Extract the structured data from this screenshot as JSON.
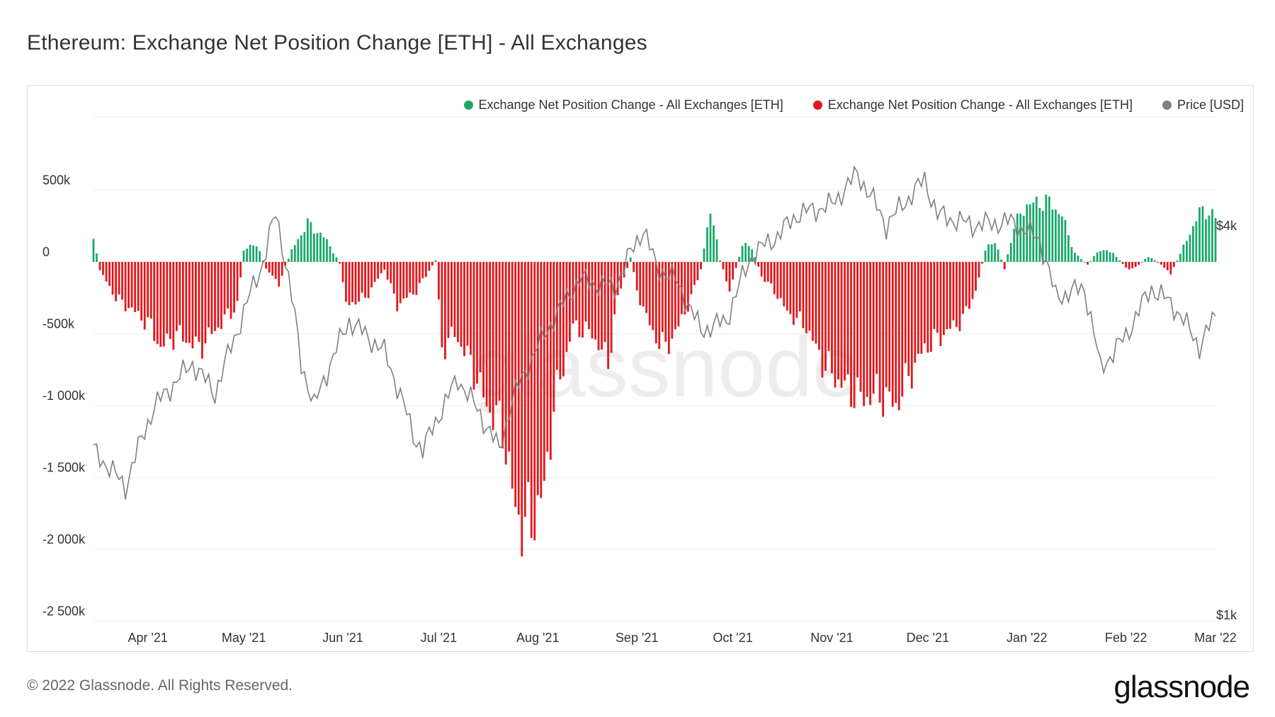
{
  "title": "Ethereum: Exchange Net Position Change [ETH] - All Exchanges",
  "legend": [
    {
      "label": "Exchange Net Position Change - All Exchanges [ETH]",
      "color": "#1aa86a"
    },
    {
      "label": "Exchange Net Position Change - All Exchanges [ETH]",
      "color": "#e3161b"
    },
    {
      "label": "Price [USD]",
      "color": "#808080"
    }
  ],
  "watermark": "glassnode",
  "footer": "© 2022 Glassnode. All Rights Reserved.",
  "brand": "glassnode",
  "chart_data": {
    "type": "bar",
    "x_ticks": [
      "Apr '21",
      "May '21",
      "Jun '21",
      "Jul '21",
      "Aug '21",
      "Sep '21",
      "Oct '21",
      "Nov '21",
      "Dec '21",
      "Jan '22",
      "Feb '22",
      "Mar '22"
    ],
    "y_ticks": [
      "500k",
      "0",
      "-500k",
      "-1 000k",
      "-1 500k",
      "-2 000k",
      "-2 500k"
    ],
    "ylim": [
      -2500000,
      500000
    ],
    "y2_ticks": [
      "$4k",
      "$1k"
    ],
    "y2_log": true,
    "grid": true,
    "legend_position": "top-right",
    "net_position_keypoints": [
      [
        "2021-03-15",
        160000
      ],
      [
        "2021-03-17",
        -60000
      ],
      [
        "2021-03-22",
        -250000
      ],
      [
        "2021-03-28",
        -350000
      ],
      [
        "2021-04-02",
        -450000
      ],
      [
        "2021-04-05",
        -600000
      ],
      [
        "2021-04-10",
        -500000
      ],
      [
        "2021-04-17",
        -600000
      ],
      [
        "2021-04-25",
        -400000
      ],
      [
        "2021-04-29",
        -300000
      ],
      [
        "2021-05-01",
        80000
      ],
      [
        "2021-05-05",
        130000
      ],
      [
        "2021-05-08",
        -50000
      ],
      [
        "2021-05-12",
        -150000
      ],
      [
        "2021-05-16",
        80000
      ],
      [
        "2021-05-21",
        270000
      ],
      [
        "2021-05-27",
        150000
      ],
      [
        "2021-05-31",
        -10000
      ],
      [
        "2021-06-02",
        -300000
      ],
      [
        "2021-06-08",
        -250000
      ],
      [
        "2021-06-14",
        -50000
      ],
      [
        "2021-06-18",
        -300000
      ],
      [
        "2021-06-24",
        -200000
      ],
      [
        "2021-06-30",
        10000
      ],
      [
        "2021-07-02",
        -600000
      ],
      [
        "2021-07-06",
        -500000
      ],
      [
        "2021-07-11",
        -700000
      ],
      [
        "2021-07-16",
        -1000000
      ],
      [
        "2021-07-21",
        -1150000
      ],
      [
        "2021-07-25",
        -1750000
      ],
      [
        "2021-07-29",
        -1850000
      ],
      [
        "2021-08-03",
        -1600000
      ],
      [
        "2021-08-06",
        -1000000
      ],
      [
        "2021-08-12",
        -450000
      ],
      [
        "2021-08-18",
        -500000
      ],
      [
        "2021-08-23",
        -700000
      ],
      [
        "2021-08-26",
        -250000
      ],
      [
        "2021-08-30",
        30000
      ],
      [
        "2021-09-01",
        -200000
      ],
      [
        "2021-09-06",
        -500000
      ],
      [
        "2021-09-10",
        -600000
      ],
      [
        "2021-09-14",
        -450000
      ],
      [
        "2021-09-18",
        -250000
      ],
      [
        "2021-09-21",
        -50000
      ],
      [
        "2021-09-24",
        380000
      ],
      [
        "2021-09-27",
        10000
      ],
      [
        "2021-09-30",
        -200000
      ],
      [
        "2021-10-04",
        120000
      ],
      [
        "2021-10-07",
        100000
      ],
      [
        "2021-10-10",
        -100000
      ],
      [
        "2021-10-14",
        -200000
      ],
      [
        "2021-10-18",
        -350000
      ],
      [
        "2021-10-24",
        -450000
      ],
      [
        "2021-10-29",
        -700000
      ],
      [
        "2021-11-04",
        -850000
      ],
      [
        "2021-11-10",
        -950000
      ],
      [
        "2021-11-16",
        -920000
      ],
      [
        "2021-11-21",
        -1000000
      ],
      [
        "2021-11-25",
        -800000
      ],
      [
        "2021-11-30",
        -600000
      ],
      [
        "2021-12-06",
        -500000
      ],
      [
        "2021-12-12",
        -400000
      ],
      [
        "2021-12-16",
        -200000
      ],
      [
        "2021-12-19",
        80000
      ],
      [
        "2021-12-22",
        150000
      ],
      [
        "2021-12-25",
        -50000
      ],
      [
        "2021-12-28",
        250000
      ],
      [
        "2022-01-01",
        400000
      ],
      [
        "2022-01-05",
        410000
      ],
      [
        "2022-01-08",
        420000
      ],
      [
        "2022-01-12",
        320000
      ],
      [
        "2022-01-16",
        60000
      ],
      [
        "2022-01-20",
        -20000
      ],
      [
        "2022-01-24",
        90000
      ],
      [
        "2022-01-28",
        60000
      ],
      [
        "2022-02-02",
        -60000
      ],
      [
        "2022-02-05",
        -20000
      ],
      [
        "2022-02-08",
        40000
      ],
      [
        "2022-02-12",
        -20000
      ],
      [
        "2022-02-15",
        -80000
      ],
      [
        "2022-02-20",
        150000
      ],
      [
        "2022-02-24",
        350000
      ],
      [
        "2022-02-27",
        350000
      ],
      [
        "2022-03-01",
        300000
      ]
    ],
    "price_usd_keypoints": [
      [
        "2021-03-15",
        1800
      ],
      [
        "2021-03-25",
        1580
      ],
      [
        "2021-04-03",
        2100
      ],
      [
        "2021-04-15",
        2450
      ],
      [
        "2021-04-22",
        2200
      ],
      [
        "2021-04-29",
        2750
      ],
      [
        "2021-05-07",
        3500
      ],
      [
        "2021-05-11",
        4170
      ],
      [
        "2021-05-19",
        2450
      ],
      [
        "2021-05-23",
        2100
      ],
      [
        "2021-06-03",
        2850
      ],
      [
        "2021-06-14",
        2550
      ],
      [
        "2021-06-23",
        1900
      ],
      [
        "2021-06-26",
        1800
      ],
      [
        "2021-07-07",
        2320
      ],
      [
        "2021-07-20",
        1800
      ],
      [
        "2021-07-24",
        2150
      ],
      [
        "2021-08-01",
        2600
      ],
      [
        "2021-08-14",
        3300
      ],
      [
        "2021-08-25",
        3200
      ],
      [
        "2021-09-03",
        3950
      ],
      [
        "2021-09-07",
        3450
      ],
      [
        "2021-09-13",
        3300
      ],
      [
        "2021-09-21",
        2750
      ],
      [
        "2021-09-29",
        2850
      ],
      [
        "2021-10-07",
        3600
      ],
      [
        "2021-10-15",
        3850
      ],
      [
        "2021-10-21",
        4150
      ],
      [
        "2021-11-01",
        4300
      ],
      [
        "2021-11-09",
        4800
      ],
      [
        "2021-11-18",
        4000
      ],
      [
        "2021-11-30",
        4700
      ],
      [
        "2021-12-04",
        4150
      ],
      [
        "2021-12-15",
        4000
      ],
      [
        "2021-12-27",
        4050
      ],
      [
        "2022-01-05",
        3800
      ],
      [
        "2022-01-10",
        3100
      ],
      [
        "2022-01-19",
        3200
      ],
      [
        "2022-01-24",
        2400
      ],
      [
        "2022-02-01",
        2700
      ],
      [
        "2022-02-09",
        3200
      ],
      [
        "2022-02-16",
        3000
      ],
      [
        "2022-02-24",
        2600
      ],
      [
        "2022-03-01",
        2900
      ]
    ]
  }
}
